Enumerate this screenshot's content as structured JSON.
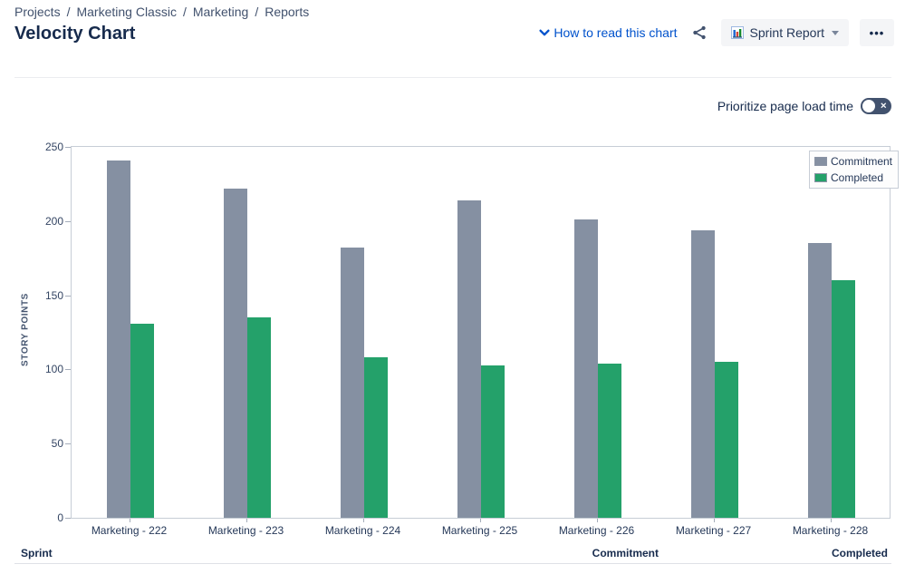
{
  "breadcrumb": {
    "separator": "/",
    "items": [
      "Projects",
      "Marketing Classic",
      "Marketing",
      "Reports"
    ]
  },
  "header": {
    "title": "Velocity Chart",
    "help_link_label": "How to read this chart",
    "report_button_label": "Sprint Report",
    "more_button_glyph": "•••"
  },
  "controls": {
    "prioritize_toggle": {
      "label": "Prioritize page load time",
      "state": "off",
      "off_glyph": "✕"
    }
  },
  "chart_data": {
    "type": "bar",
    "title": "Velocity Chart",
    "xlabel": "",
    "ylabel": "STORY POINTS",
    "categories": [
      "Marketing - 222",
      "Marketing - 223",
      "Marketing - 224",
      "Marketing - 225",
      "Marketing - 226",
      "Marketing - 227",
      "Marketing - 228"
    ],
    "series": [
      {
        "name": "Commitment",
        "color": "#8590A2",
        "values": [
          241,
          222,
          182,
          214,
          201,
          194,
          185
        ]
      },
      {
        "name": "Completed",
        "color": "#24A16A",
        "values": [
          131,
          135,
          108,
          103,
          104,
          105,
          160
        ]
      }
    ],
    "ylim": [
      0,
      250
    ],
    "yticks": [
      0,
      50,
      100,
      150,
      200,
      250
    ],
    "legend_position": "top-right",
    "grid": false
  },
  "table": {
    "columns": [
      "Sprint",
      "Commitment",
      "Completed"
    ]
  },
  "colors": {
    "accent_blue": "#0052CC",
    "text_primary": "#172B4D",
    "text_secondary": "#42526E",
    "commitment_bar": "#8590A2",
    "completed_bar": "#24A16A",
    "button_bg": "#F4F5F7",
    "divider": "#EBECF0",
    "plot_border": "#C7CDD6"
  }
}
